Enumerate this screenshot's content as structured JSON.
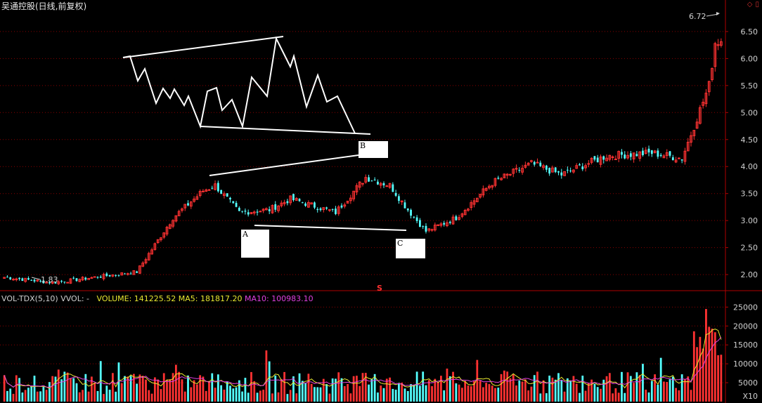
{
  "header": {
    "title": "吴通控股(日线,前复权)"
  },
  "volume_header": {
    "indicator": "VOL-TDX(5,10)",
    "vvol": "VVOL: -",
    "volume": "VOLUME: 141225.52",
    "ma5": "MA5: 181817.20",
    "ma10": "MA10: 100983.10",
    "unit": "X10"
  },
  "icons": [
    "diamond-icon",
    "window-icon"
  ],
  "colors": {
    "up": "#ff3232",
    "down": "#54ffff",
    "ma5": "#e8e830",
    "ma10": "#e040e0",
    "grid": "#8a0000",
    "axis_text": "#d0d0d0"
  },
  "annotations": {
    "A": "A",
    "B": "B",
    "C": "C",
    "marker_s": "S",
    "high_label": "6.72",
    "low_label": "1.83"
  },
  "chart_data": [
    {
      "type": "candlestick",
      "title": "吴通控股(日线,前复权)",
      "ylim": [
        1.78,
        6.85
      ],
      "y_ticks": [
        "6.50",
        "6.00",
        "5.50",
        "5.00",
        "4.50",
        "4.00",
        "3.50",
        "3.00",
        "2.50",
        "2.00"
      ],
      "high": 6.72,
      "low": 1.83,
      "key_closes": [
        {
          "index": 0,
          "close": 1.95
        },
        {
          "index": 16,
          "close": 1.85
        },
        {
          "index": 44,
          "close": 2.05
        },
        {
          "index": 56,
          "close": 3.05
        },
        {
          "index": 66,
          "close": 3.55
        },
        {
          "index": 70,
          "close": 3.65
        },
        {
          "index": 78,
          "close": 3.15
        },
        {
          "index": 88,
          "close": 3.2
        },
        {
          "index": 95,
          "close": 3.4
        },
        {
          "index": 110,
          "close": 3.15
        },
        {
          "index": 120,
          "close": 3.8
        },
        {
          "index": 128,
          "close": 3.65
        },
        {
          "index": 134,
          "close": 3.2
        },
        {
          "index": 140,
          "close": 2.8
        },
        {
          "index": 150,
          "close": 3.05
        },
        {
          "index": 162,
          "close": 3.7
        },
        {
          "index": 175,
          "close": 4.05
        },
        {
          "index": 185,
          "close": 3.85
        },
        {
          "index": 200,
          "close": 4.2
        },
        {
          "index": 215,
          "close": 4.25
        },
        {
          "index": 225,
          "close": 4.15
        },
        {
          "index": 234,
          "close": 5.5
        },
        {
          "index": 236,
          "close": 6.3
        }
      ]
    },
    {
      "type": "bar",
      "title": "VOL-TDX(5,10)",
      "ylim": [
        0,
        26000
      ],
      "y_ticks": [
        "25000",
        "20000",
        "15000",
        "10000",
        "5000"
      ],
      "unit": "X10",
      "volume": 141225.52,
      "ma5": 181817.2,
      "ma10": 100983.1
    }
  ]
}
